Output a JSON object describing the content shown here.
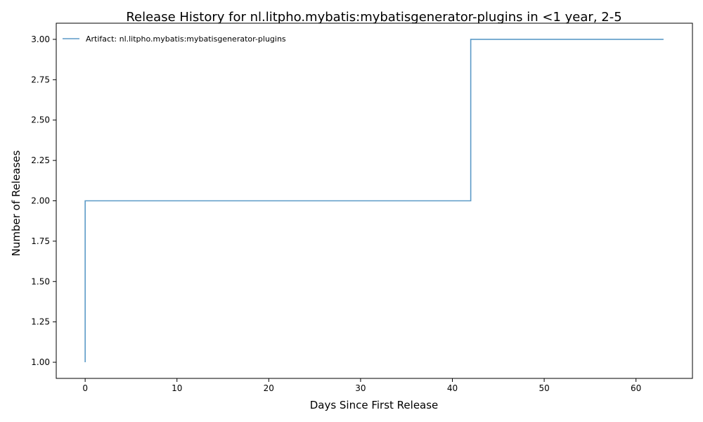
{
  "chart_data": {
    "type": "line",
    "step": "post",
    "title": "Release History for nl.litpho.mybatis:mybatisgenerator-plugins in <1 year, 2-5",
    "xlabel": "Days Since First Release",
    "ylabel": "Number of Releases",
    "xlim": [
      -3.15,
      66.15
    ],
    "ylim": [
      0.9,
      3.1
    ],
    "xticks": [
      0,
      10,
      20,
      30,
      40,
      50,
      60
    ],
    "yticks": [
      1.0,
      1.25,
      1.5,
      1.75,
      2.0,
      2.25,
      2.5,
      2.75,
      3.0
    ],
    "xtick_labels": [
      "0",
      "10",
      "20",
      "30",
      "40",
      "50",
      "60"
    ],
    "ytick_labels": [
      "1.00",
      "1.25",
      "1.50",
      "1.75",
      "2.00",
      "2.25",
      "2.50",
      "2.75",
      "3.00"
    ],
    "grid": false,
    "legend_position": "top-left",
    "series": [
      {
        "name": "Artifact: nl.litpho.mybatis:mybatisgenerator-plugins",
        "color": "#5b9ac7",
        "x": [
          0,
          0,
          42,
          63
        ],
        "y": [
          1,
          2,
          3,
          3
        ]
      }
    ]
  }
}
